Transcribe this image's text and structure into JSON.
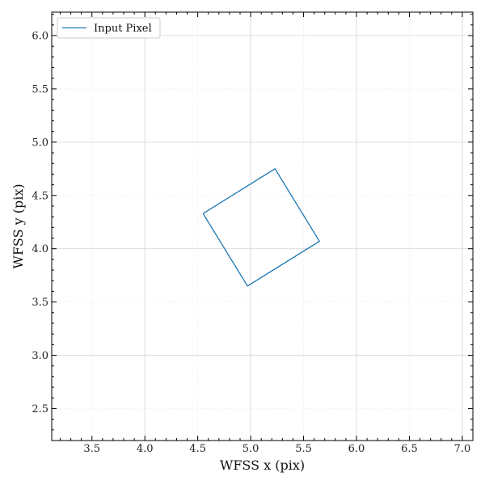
{
  "chart_data": {
    "type": "line",
    "title": "",
    "xlabel": "WFSS x (pix)",
    "ylabel": "WFSS y (pix)",
    "xlim": [
      3.12,
      7.1
    ],
    "ylim": [
      2.2,
      6.22
    ],
    "xticks": [
      3.5,
      4.0,
      4.5,
      5.0,
      5.5,
      6.0,
      6.5,
      7.0
    ],
    "xtick_labels": [
      "3.5",
      "4.0",
      "4.5",
      "5.0",
      "5.5",
      "6.0",
      "6.5",
      "7.0"
    ],
    "yticks": [
      2.5,
      3.0,
      3.5,
      4.0,
      4.5,
      5.0,
      5.5,
      6.0
    ],
    "ytick_labels": [
      "2.5",
      "3.0",
      "3.5",
      "4.0",
      "4.5",
      "5.0",
      "5.5",
      "6.0"
    ],
    "grid_major_x": [
      4.0,
      5.0,
      6.0,
      7.0
    ],
    "grid_major_y": [
      3.0,
      4.0,
      5.0,
      6.0
    ],
    "grid_minor_x": [
      3.5,
      4.5,
      5.5,
      6.5
    ],
    "grid_minor_y": [
      2.5,
      3.5,
      4.5,
      5.5
    ],
    "legend": "top-left",
    "series": [
      {
        "name": "Input Pixel",
        "color": "#1f77b4",
        "x": [
          4.55,
          5.23,
          5.65,
          4.97,
          4.55
        ],
        "y": [
          4.33,
          4.75,
          4.07,
          3.65,
          4.33
        ]
      }
    ]
  }
}
